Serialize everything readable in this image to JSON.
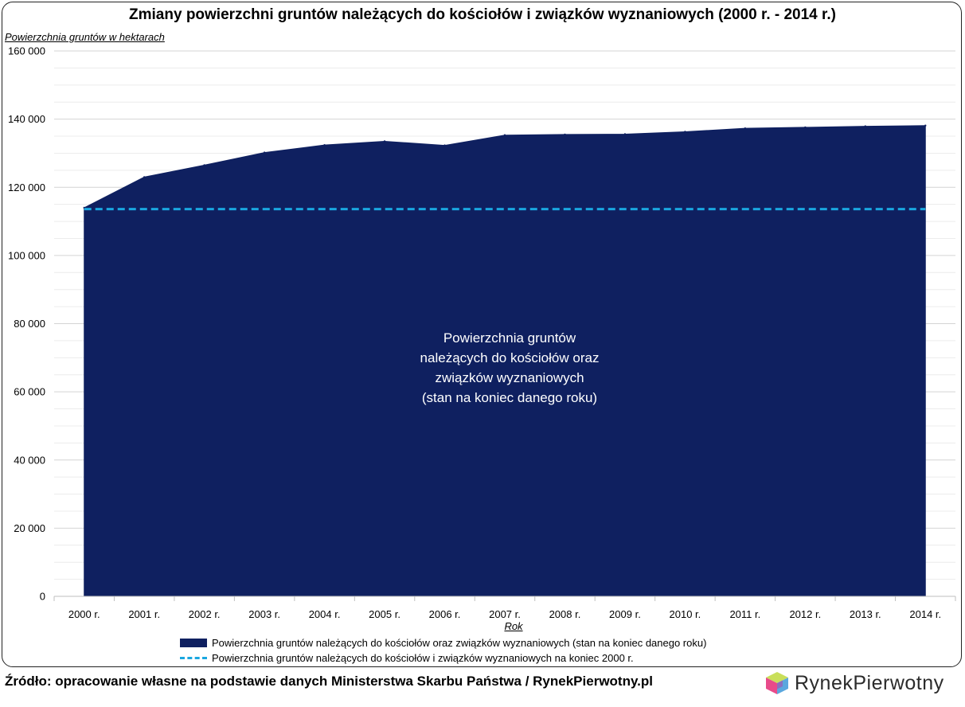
{
  "chart_data": {
    "type": "area",
    "title": "Zmiany powierzchni gruntów należących do kościołów i związków wyznaniowych (2000 r. - 2014 r.)",
    "ylabel": "Powierzchnia gruntów w hektarach",
    "xlabel": "Rok",
    "categories": [
      "2000 r.",
      "2001 r.",
      "2002 r.",
      "2003 r.",
      "2004 r.",
      "2005 r.",
      "2006 r.",
      "2007 r.",
      "2008 r.",
      "2009 r.",
      "2010 r.",
      "2011 r.",
      "2012 r.",
      "2013 r.",
      "2014 r."
    ],
    "ylim": [
      0,
      160000
    ],
    "yticks": [
      0,
      20000,
      40000,
      60000,
      80000,
      100000,
      120000,
      140000,
      160000
    ],
    "ytick_labels": [
      "0",
      "20 000",
      "40 000",
      "60 000",
      "80 000",
      "100 000",
      "120 000",
      "140 000",
      "160 000"
    ],
    "grid": true,
    "series": [
      {
        "name": "Powierzchnia gruntów należących do kościołów oraz związków wyznaniowych (stan na koniec danego roku)",
        "kind": "area",
        "color": "#0f2060",
        "values": [
          114000,
          123000,
          126500,
          130200,
          132400,
          133500,
          132300,
          135300,
          135500,
          135600,
          136300,
          137300,
          137600,
          137900,
          138100
        ]
      },
      {
        "name": "Powierzchnia gruntów należących do kościołów i związków wyznaniowych na koniec 2000 r.",
        "kind": "dashed-line",
        "color": "#1aa7e0",
        "values": [
          113600,
          113600,
          113600,
          113600,
          113600,
          113600,
          113600,
          113600,
          113600,
          113600,
          113600,
          113600,
          113600,
          113600,
          113600
        ]
      }
    ],
    "annotation": "Powierzchnia gruntów\nnależących do kościołów oraz\nzwiązków wyznaniowych\n(stan na koniec danego roku)",
    "legend_position": "bottom"
  },
  "source": "Źródło: opracowanie własne na podstawie danych Ministerstwa Skarbu Państwa / RynekPierwotny.pl",
  "logo": {
    "text": "RynekPierwotny",
    "icon": "cube-logo-icon"
  }
}
